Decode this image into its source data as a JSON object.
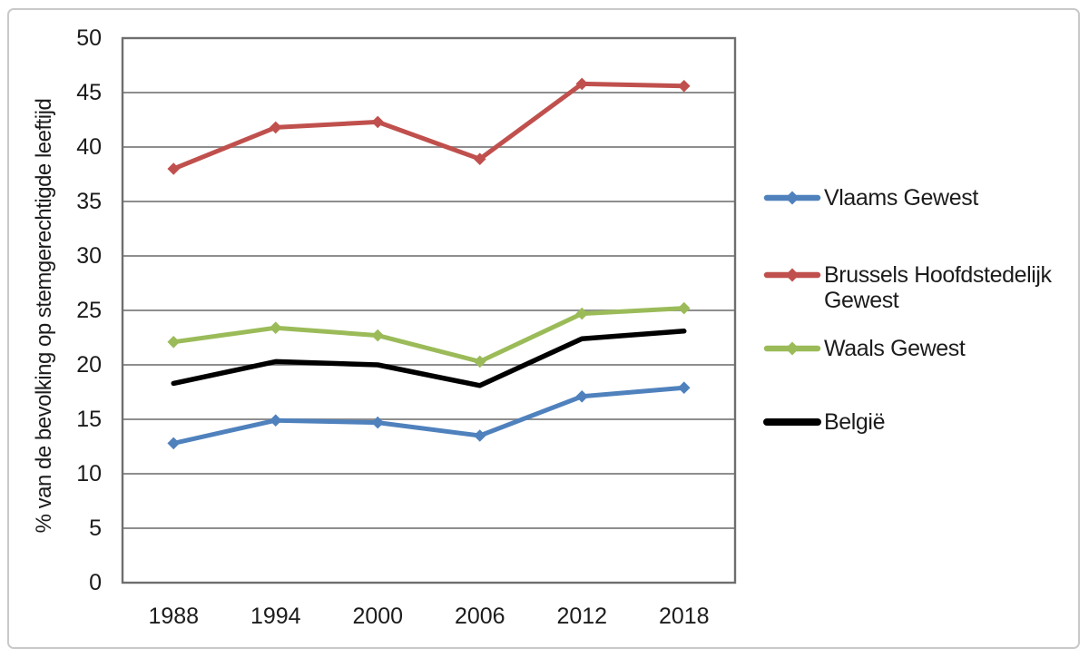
{
  "chart_data": {
    "type": "line",
    "title": "",
    "xlabel": "",
    "ylabel": "% van de bevolking op stemgerechtigde leeftijd",
    "categories": [
      "1988",
      "1994",
      "2000",
      "2006",
      "2012",
      "2018"
    ],
    "ylim": [
      0,
      50
    ],
    "ytick_step": 5,
    "yticklabels": [
      "0",
      "5",
      "10",
      "15",
      "20",
      "25",
      "30",
      "35",
      "40",
      "45",
      "50"
    ],
    "grid": true,
    "legend_position": "right",
    "series": [
      {
        "name": "Vlaams Gewest",
        "legend_lines": [
          "Vlaams Gewest"
        ],
        "color": "#4F81BD",
        "marker": "diamond",
        "values": [
          12.8,
          14.9,
          14.7,
          13.5,
          17.1,
          17.9
        ]
      },
      {
        "name": "Brussels Hoofdstedelijk Gewest",
        "legend_lines": [
          "Brussels Hoofdstedelijk",
          "Gewest"
        ],
        "color": "#C0504D",
        "marker": "diamond",
        "values": [
          38.0,
          41.8,
          42.3,
          38.9,
          45.8,
          45.6
        ]
      },
      {
        "name": "Waals Gewest",
        "legend_lines": [
          "Waals Gewest"
        ],
        "color": "#9BBB59",
        "marker": "diamond",
        "values": [
          22.1,
          23.4,
          22.7,
          20.3,
          24.7,
          25.2
        ]
      },
      {
        "name": "België",
        "legend_lines": [
          "België"
        ],
        "color": "#000000",
        "marker": "none",
        "values": [
          18.3,
          20.3,
          20.0,
          18.1,
          22.4,
          23.1
        ]
      }
    ]
  },
  "style": {
    "background": "#ffffff",
    "outer_border": "#c9c9c9",
    "plot_border": "#6e6e6e",
    "gridline": "#8e8e8e",
    "text": "#1c1c1c"
  }
}
